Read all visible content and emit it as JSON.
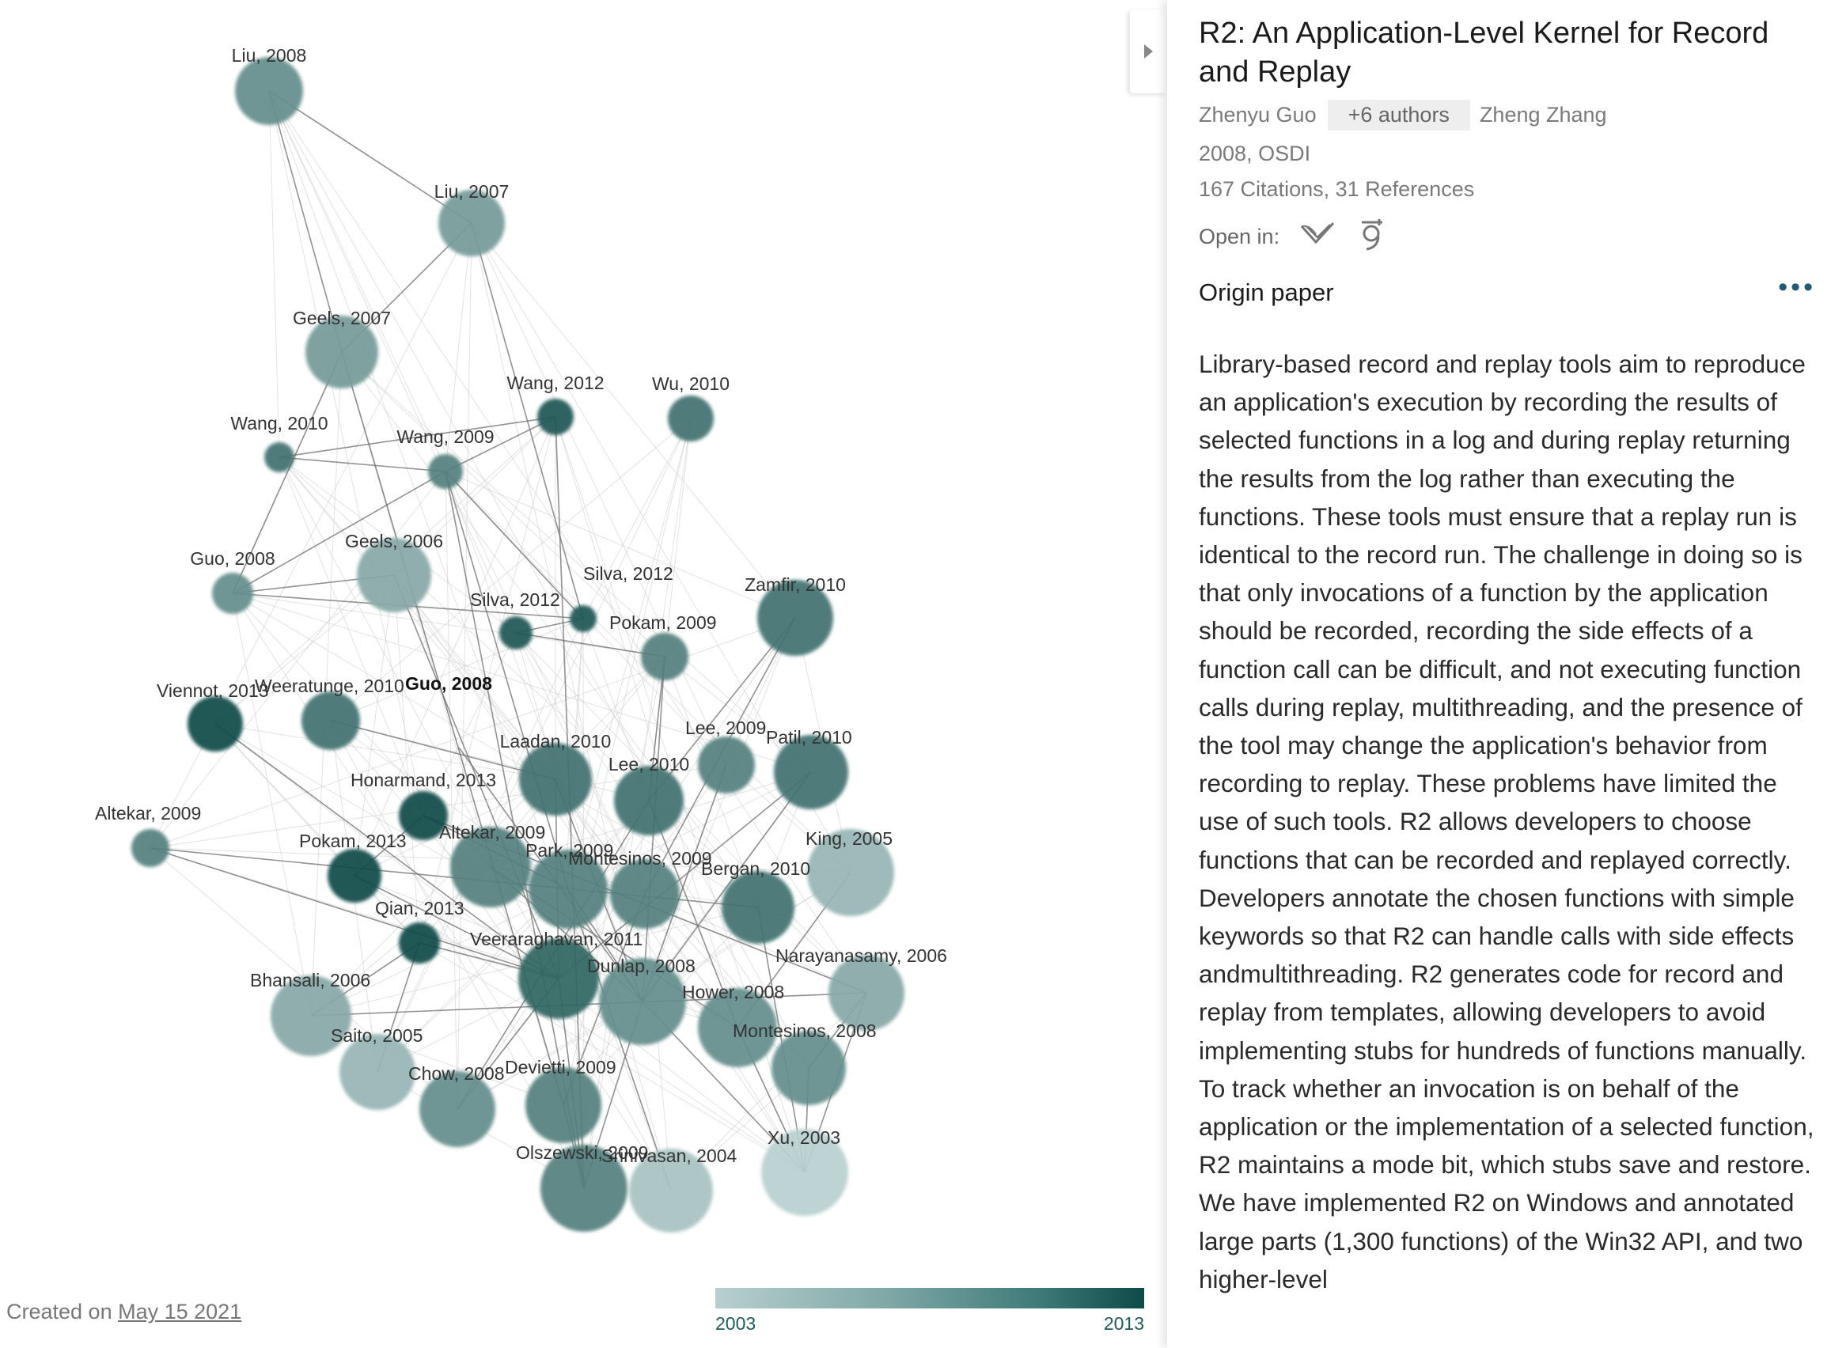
{
  "graph": {
    "origin_label": "Guo, 2008",
    "nodes": [
      {
        "label": "Liu, 2008",
        "year": 2008
      },
      {
        "label": "Liu, 2007",
        "year": 2007
      },
      {
        "label": "Geels, 2007",
        "year": 2007
      },
      {
        "label": "Wang, 2012",
        "year": 2012
      },
      {
        "label": "Wu, 2010",
        "year": 2010
      },
      {
        "label": "Wang, 2010",
        "year": 2010
      },
      {
        "label": "Wang, 2009",
        "year": 2009
      },
      {
        "label": "Guo, 2008",
        "year": 2008
      },
      {
        "label": "Geels, 2006",
        "year": 2006
      },
      {
        "label": "Silva, 2012",
        "year": 2012
      },
      {
        "label": "Silva, 2012",
        "year": 2012
      },
      {
        "label": "Zamfir, 2010",
        "year": 2010
      },
      {
        "label": "Pokam, 2009",
        "year": 2009
      },
      {
        "label": "Viennot, 2013",
        "year": 2013
      },
      {
        "label": "Weeratunge, 2010",
        "year": 2010
      },
      {
        "label": "Guo, 2008",
        "year": 2008
      },
      {
        "label": "Lee, 2009",
        "year": 2009
      },
      {
        "label": "Patil, 2010",
        "year": 2010
      },
      {
        "label": "Laadan, 2010",
        "year": 2010
      },
      {
        "label": "Lee, 2010",
        "year": 2010
      },
      {
        "label": "Honarmand, 2013",
        "year": 2013
      },
      {
        "label": "Altekar, 2009",
        "year": 2009
      },
      {
        "label": "Altekar, 2009",
        "year": 2009
      },
      {
        "label": "Pokam, 2013",
        "year": 2013
      },
      {
        "label": "Park, 2009",
        "year": 2009
      },
      {
        "label": "Montesinos, 2009",
        "year": 2009
      },
      {
        "label": "King, 2005",
        "year": 2005
      },
      {
        "label": "Bergan, 2010",
        "year": 2010
      },
      {
        "label": "Qian, 2013",
        "year": 2013
      },
      {
        "label": "Veeraraghavan, 2011",
        "year": 2011
      },
      {
        "label": "Narayanasamy, 2006",
        "year": 2006
      },
      {
        "label": "Dunlap, 2008",
        "year": 2008
      },
      {
        "label": "Bhansali, 2006",
        "year": 2006
      },
      {
        "label": "Hower, 2008",
        "year": 2008
      },
      {
        "label": "Saito, 2005",
        "year": 2005
      },
      {
        "label": "Montesinos, 2008",
        "year": 2008
      },
      {
        "label": "Chow, 2008",
        "year": 2008
      },
      {
        "label": "Devietti, 2009",
        "year": 2009
      },
      {
        "label": "Xu, 2003",
        "year": 2003
      },
      {
        "label": "Olszewski, 2009",
        "year": 2009
      },
      {
        "label": "Srinivasan, 2004",
        "year": 2004
      }
    ]
  },
  "footer": {
    "created_prefix": "Created on",
    "created_date": "May 15 2021"
  },
  "legend": {
    "min_label": "2003",
    "max_label": "2013",
    "colors": [
      "#b8cfcf",
      "#7fa8a7",
      "#3f7b79",
      "#0e4a47"
    ]
  },
  "paper": {
    "title": "R2: An Application-Level Kernel for Record and Replay",
    "first_author": "Zhenyu Guo",
    "more_authors": "+6 authors",
    "last_author": "Zheng Zhang",
    "year_venue": "2008, OSDI",
    "citations_refs": "167 Citations, 31 References",
    "open_in_label": "Open in:",
    "open_in_icons": [
      "semantic-scholar-icon",
      "google-scholar-icon"
    ],
    "origin_label": "Origin paper",
    "more_menu": "•••",
    "abstract": "Library-based record and replay tools aim to reproduce an application's execution by recording the results of selected functions in a log and during replay returning the results from the log rather than executing the functions. These tools must ensure that a replay run is identical to the record run. The challenge in doing so is that only invocations of a function by the application should be recorded, recording the side effects of a function call can be difficult, and not executing function calls during replay, multithreading, and the presence of the tool may change the application's behavior from recording to replay. These problems have limited the use of such tools. R2 allows developers to choose functions that can be recorded and replayed correctly. Developers annotate the chosen functions with simple keywords so that R2 can handle calls with side effects andmultithreading. R2 generates code for record and replay from templates, allowing developers to avoid implementing stubs for hundreds of functions manually. To track whether an invocation is on behalf of the application or the implementation of a selected function, R2 maintains a mode bit, which stubs save and restore. We have implemented R2 on Windows and annotated large parts (1,300 functions) of the Win32 API, and two higher-level"
  }
}
